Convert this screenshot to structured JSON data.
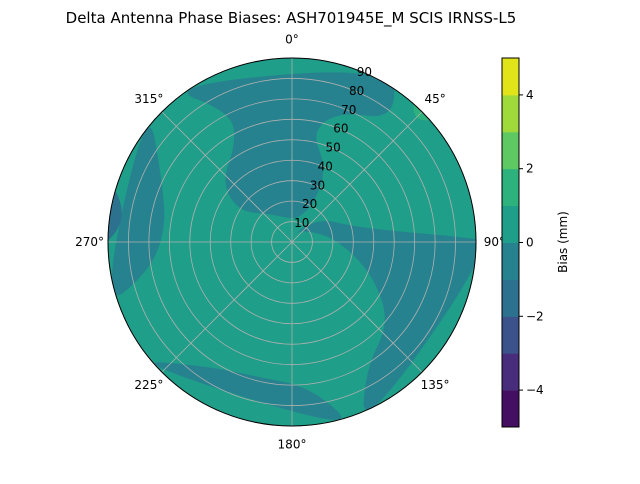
{
  "chart_data": {
    "type": "contour",
    "projection": "polar",
    "title": "Delta Antenna Phase Biases: ASH701945E_M    SCIS IRNSS-L5",
    "angle_ticks": [
      "0°",
      "45°",
      "90°",
      "135°",
      "180°",
      "225°",
      "270°",
      "315°"
    ],
    "radial_ticks": [
      "10",
      "20",
      "30",
      "40",
      "50",
      "60",
      "70",
      "80",
      "90"
    ],
    "radial_range": [
      0,
      90
    ],
    "grid": true,
    "colorbar": {
      "label": "Bias (mm)",
      "range": [
        -5,
        5
      ],
      "ticks": [
        "−4",
        "−2",
        "0",
        "2",
        "4"
      ],
      "tick_values": [
        -4,
        -2,
        0,
        2,
        4
      ],
      "levels": [
        -5,
        -4,
        -3,
        -2,
        -1,
        0,
        1,
        2,
        3,
        4,
        5
      ],
      "colors": [
        "#440f62",
        "#472d7b",
        "#3b528b",
        "#2c728e",
        "#26828e",
        "#1f9e89",
        "#2db27d",
        "#5ec962",
        "#9fda3a",
        "#e1e418"
      ]
    },
    "background_level": [
      0,
      1
    ],
    "regions": [
      {
        "level": [
          -1,
          0
        ],
        "points": [
          [
            320,
            90
          ],
          [
            335,
            70
          ],
          [
            330,
            55
          ],
          [
            310,
            45
          ],
          [
            300,
            30
          ],
          [
            320,
            18
          ],
          [
            350,
            12
          ],
          [
            15,
            12
          ],
          [
            30,
            22
          ],
          [
            25,
            40
          ],
          [
            10,
            55
          ],
          [
            20,
            68
          ],
          [
            40,
            78
          ],
          [
            30,
            90
          ]
        ]
      },
      {
        "level": [
          -1,
          0
        ],
        "points": [
          [
            10,
            4
          ],
          [
            50,
            18
          ],
          [
            75,
            30
          ],
          [
            85,
            55
          ],
          [
            88,
            80
          ],
          [
            90,
            90
          ],
          [
            160,
            90
          ],
          [
            150,
            72
          ],
          [
            130,
            62
          ],
          [
            115,
            45
          ],
          [
            100,
            30
          ],
          [
            80,
            18
          ],
          [
            45,
            8
          ]
        ]
      },
      {
        "level": [
          -1,
          0
        ],
        "points": [
          [
            160,
            90
          ],
          [
            172,
            72
          ],
          [
            195,
            68
          ],
          [
            215,
            74
          ],
          [
            235,
            90
          ]
        ]
      },
      {
        "level": [
          -1,
          0
        ],
        "points": [
          [
            250,
            90
          ],
          [
            258,
            72
          ],
          [
            275,
            62
          ],
          [
            295,
            70
          ],
          [
            315,
            90
          ]
        ]
      },
      {
        "level": [
          -2,
          -1
        ],
        "points": [
          [
            265,
            90
          ],
          [
            278,
            80
          ],
          [
            292,
            90
          ]
        ]
      },
      {
        "level": [
          1,
          2
        ],
        "points": [
          [
            38,
            90
          ],
          [
            45,
            82
          ],
          [
            52,
            90
          ]
        ]
      }
    ]
  }
}
